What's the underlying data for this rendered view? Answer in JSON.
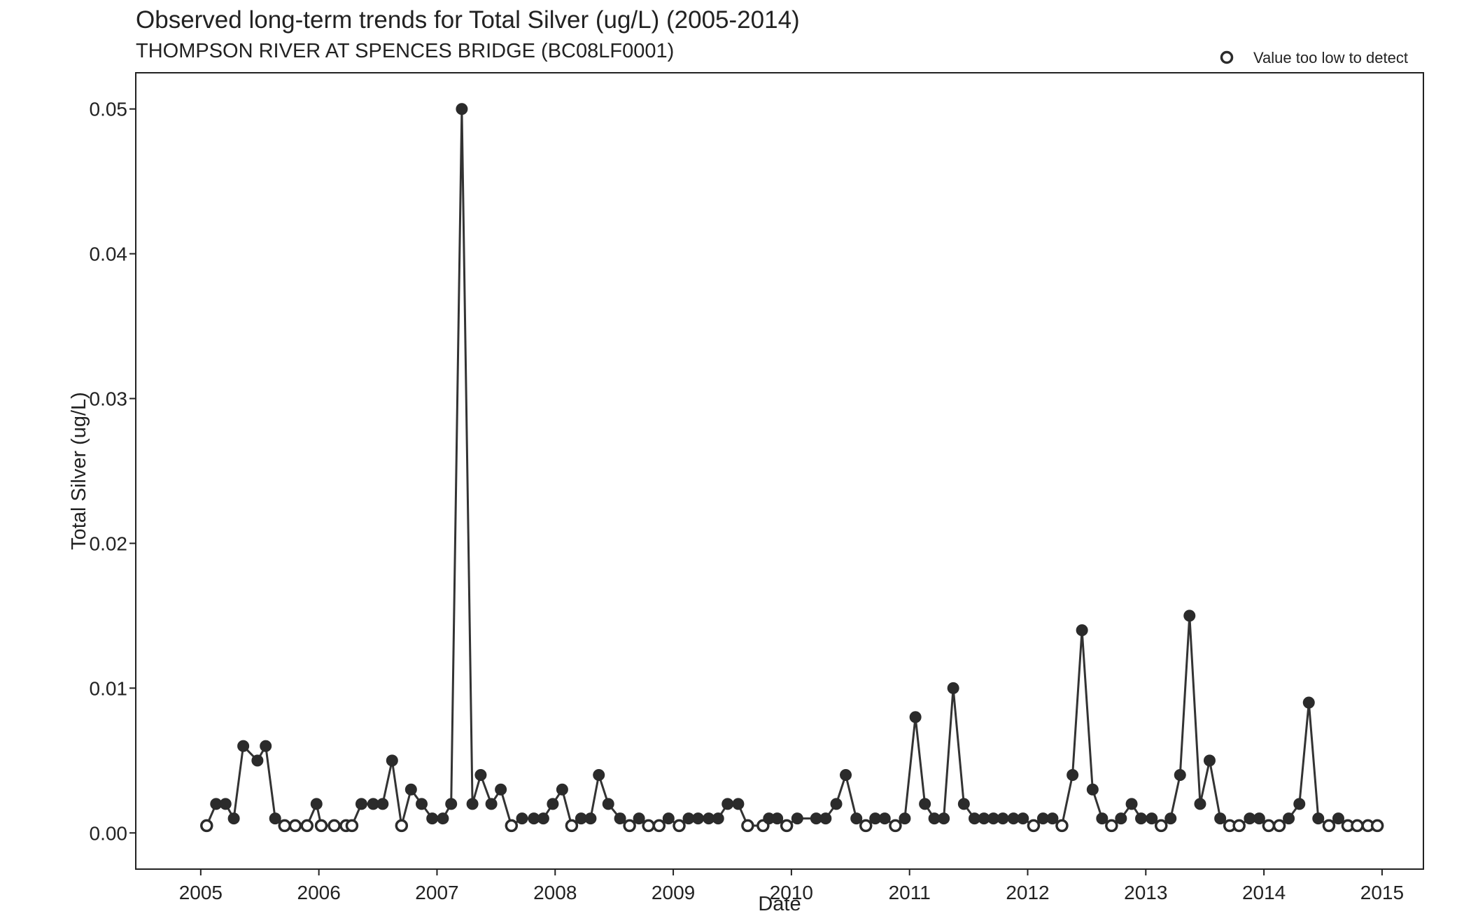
{
  "chart_data": {
    "type": "line",
    "title": "Observed long-term trends for Total Silver (ug/L) (2005-2014)",
    "subtitle": "THOMPSON RIVER AT SPENCES BRIDGE (BC08LF0001)",
    "xlabel": "Date",
    "ylabel": "Total Silver (ug/L)",
    "xlim": [
      2004.45,
      2015.35
    ],
    "ylim": [
      -0.0025,
      0.0525
    ],
    "x_ticks": [
      2005,
      2006,
      2007,
      2008,
      2009,
      2010,
      2011,
      2012,
      2013,
      2014,
      2015
    ],
    "y_ticks": [
      0,
      0.01,
      0.02,
      0.03,
      0.04,
      0.05
    ],
    "x_tick_labels": [
      "2005",
      "2006",
      "2007",
      "2008",
      "2009",
      "2010",
      "2011",
      "2012",
      "2013",
      "2014",
      "2015"
    ],
    "y_tick_labels": [
      "0.00",
      "0.01",
      "0.02",
      "0.03",
      "0.04",
      "0.05"
    ],
    "legend": {
      "position": "top-right",
      "entries": [
        {
          "marker": "open-circle",
          "label": "Value too low to detect"
        }
      ]
    },
    "grid": false,
    "colors": {
      "line": "#333333",
      "marker": "#2b2b2b",
      "frame": "#222222"
    },
    "points": [
      [
        2005.05,
        0.0005,
        1
      ],
      [
        2005.13,
        0.002,
        0
      ],
      [
        2005.21,
        0.002,
        0
      ],
      [
        2005.28,
        0.001,
        0
      ],
      [
        2005.36,
        0.006,
        0
      ],
      [
        2005.48,
        0.005,
        0
      ],
      [
        2005.55,
        0.006,
        0
      ],
      [
        2005.63,
        0.001,
        0
      ],
      [
        2005.71,
        0.0005,
        1
      ],
      [
        2005.8,
        0.0005,
        1
      ],
      [
        2005.9,
        0.0005,
        1
      ],
      [
        2005.98,
        0.002,
        0
      ],
      [
        2006.02,
        0.0005,
        1
      ],
      [
        2006.13,
        0.0005,
        1
      ],
      [
        2006.23,
        0.0005,
        1
      ],
      [
        2006.28,
        0.0005,
        1
      ],
      [
        2006.36,
        0.002,
        0
      ],
      [
        2006.46,
        0.002,
        0
      ],
      [
        2006.54,
        0.002,
        0
      ],
      [
        2006.62,
        0.005,
        0
      ],
      [
        2006.7,
        0.0005,
        1
      ],
      [
        2006.78,
        0.003,
        0
      ],
      [
        2006.87,
        0.002,
        0
      ],
      [
        2006.96,
        0.001,
        0
      ],
      [
        2007.05,
        0.001,
        0
      ],
      [
        2007.12,
        0.002,
        0
      ],
      [
        2007.21,
        0.05,
        0
      ],
      [
        2007.3,
        0.002,
        0
      ],
      [
        2007.37,
        0.004,
        0
      ],
      [
        2007.46,
        0.002,
        0
      ],
      [
        2007.54,
        0.003,
        0
      ],
      [
        2007.63,
        0.0005,
        1
      ],
      [
        2007.72,
        0.001,
        0
      ],
      [
        2007.82,
        0.001,
        0
      ],
      [
        2007.9,
        0.001,
        0
      ],
      [
        2007.98,
        0.002,
        0
      ],
      [
        2008.06,
        0.003,
        0
      ],
      [
        2008.14,
        0.0005,
        1
      ],
      [
        2008.22,
        0.001,
        0
      ],
      [
        2008.3,
        0.001,
        0
      ],
      [
        2008.37,
        0.004,
        0
      ],
      [
        2008.45,
        0.002,
        0
      ],
      [
        2008.55,
        0.001,
        0
      ],
      [
        2008.63,
        0.0005,
        1
      ],
      [
        2008.71,
        0.001,
        0
      ],
      [
        2008.79,
        0.0005,
        1
      ],
      [
        2008.88,
        0.0005,
        1
      ],
      [
        2008.96,
        0.001,
        0
      ],
      [
        2009.05,
        0.0005,
        1
      ],
      [
        2009.13,
        0.001,
        0
      ],
      [
        2009.21,
        0.001,
        0
      ],
      [
        2009.3,
        0.001,
        0
      ],
      [
        2009.38,
        0.001,
        0
      ],
      [
        2009.46,
        0.002,
        0
      ],
      [
        2009.55,
        0.002,
        0
      ],
      [
        2009.63,
        0.0005,
        1
      ],
      [
        2009.76,
        0.0005,
        1
      ],
      [
        2009.81,
        0.001,
        0
      ],
      [
        2009.88,
        0.001,
        0
      ],
      [
        2009.96,
        0.0005,
        1
      ],
      [
        2010.05,
        0.001,
        0
      ],
      [
        2010.21,
        0.001,
        0
      ],
      [
        2010.29,
        0.001,
        0
      ],
      [
        2010.38,
        0.002,
        0
      ],
      [
        2010.46,
        0.004,
        0
      ],
      [
        2010.55,
        0.001,
        0
      ],
      [
        2010.63,
        0.0005,
        1
      ],
      [
        2010.71,
        0.001,
        0
      ],
      [
        2010.79,
        0.001,
        0
      ],
      [
        2010.88,
        0.0005,
        1
      ],
      [
        2010.96,
        0.001,
        0
      ],
      [
        2011.05,
        0.008,
        0
      ],
      [
        2011.13,
        0.002,
        0
      ],
      [
        2011.21,
        0.001,
        0
      ],
      [
        2011.29,
        0.001,
        0
      ],
      [
        2011.37,
        0.01,
        0
      ],
      [
        2011.46,
        0.002,
        0
      ],
      [
        2011.55,
        0.001,
        0
      ],
      [
        2011.63,
        0.001,
        0
      ],
      [
        2011.71,
        0.001,
        0
      ],
      [
        2011.79,
        0.001,
        0
      ],
      [
        2011.88,
        0.001,
        0
      ],
      [
        2011.96,
        0.001,
        0
      ],
      [
        2012.05,
        0.0005,
        1
      ],
      [
        2012.13,
        0.001,
        0
      ],
      [
        2012.21,
        0.001,
        0
      ],
      [
        2012.29,
        0.0005,
        1
      ],
      [
        2012.38,
        0.004,
        0
      ],
      [
        2012.46,
        0.014,
        0
      ],
      [
        2012.55,
        0.003,
        0
      ],
      [
        2012.63,
        0.001,
        0
      ],
      [
        2012.71,
        0.0005,
        1
      ],
      [
        2012.79,
        0.001,
        0
      ],
      [
        2012.88,
        0.002,
        0
      ],
      [
        2012.96,
        0.001,
        0
      ],
      [
        2013.05,
        0.001,
        0
      ],
      [
        2013.13,
        0.0005,
        1
      ],
      [
        2013.21,
        0.001,
        0
      ],
      [
        2013.29,
        0.004,
        0
      ],
      [
        2013.37,
        0.015,
        0
      ],
      [
        2013.46,
        0.002,
        0
      ],
      [
        2013.54,
        0.005,
        0
      ],
      [
        2013.63,
        0.001,
        0
      ],
      [
        2013.71,
        0.0005,
        1
      ],
      [
        2013.79,
        0.0005,
        1
      ],
      [
        2013.88,
        0.001,
        0
      ],
      [
        2013.96,
        0.001,
        0
      ],
      [
        2014.04,
        0.0005,
        1
      ],
      [
        2014.13,
        0.0005,
        1
      ],
      [
        2014.21,
        0.001,
        0
      ],
      [
        2014.3,
        0.002,
        0
      ],
      [
        2014.38,
        0.009,
        0
      ],
      [
        2014.46,
        0.001,
        0
      ],
      [
        2014.55,
        0.0005,
        1
      ],
      [
        2014.63,
        0.001,
        0
      ],
      [
        2014.71,
        0.0005,
        1
      ],
      [
        2014.79,
        0.0005,
        1
      ],
      [
        2014.88,
        0.0005,
        1
      ],
      [
        2014.96,
        0.0005,
        1
      ]
    ]
  }
}
